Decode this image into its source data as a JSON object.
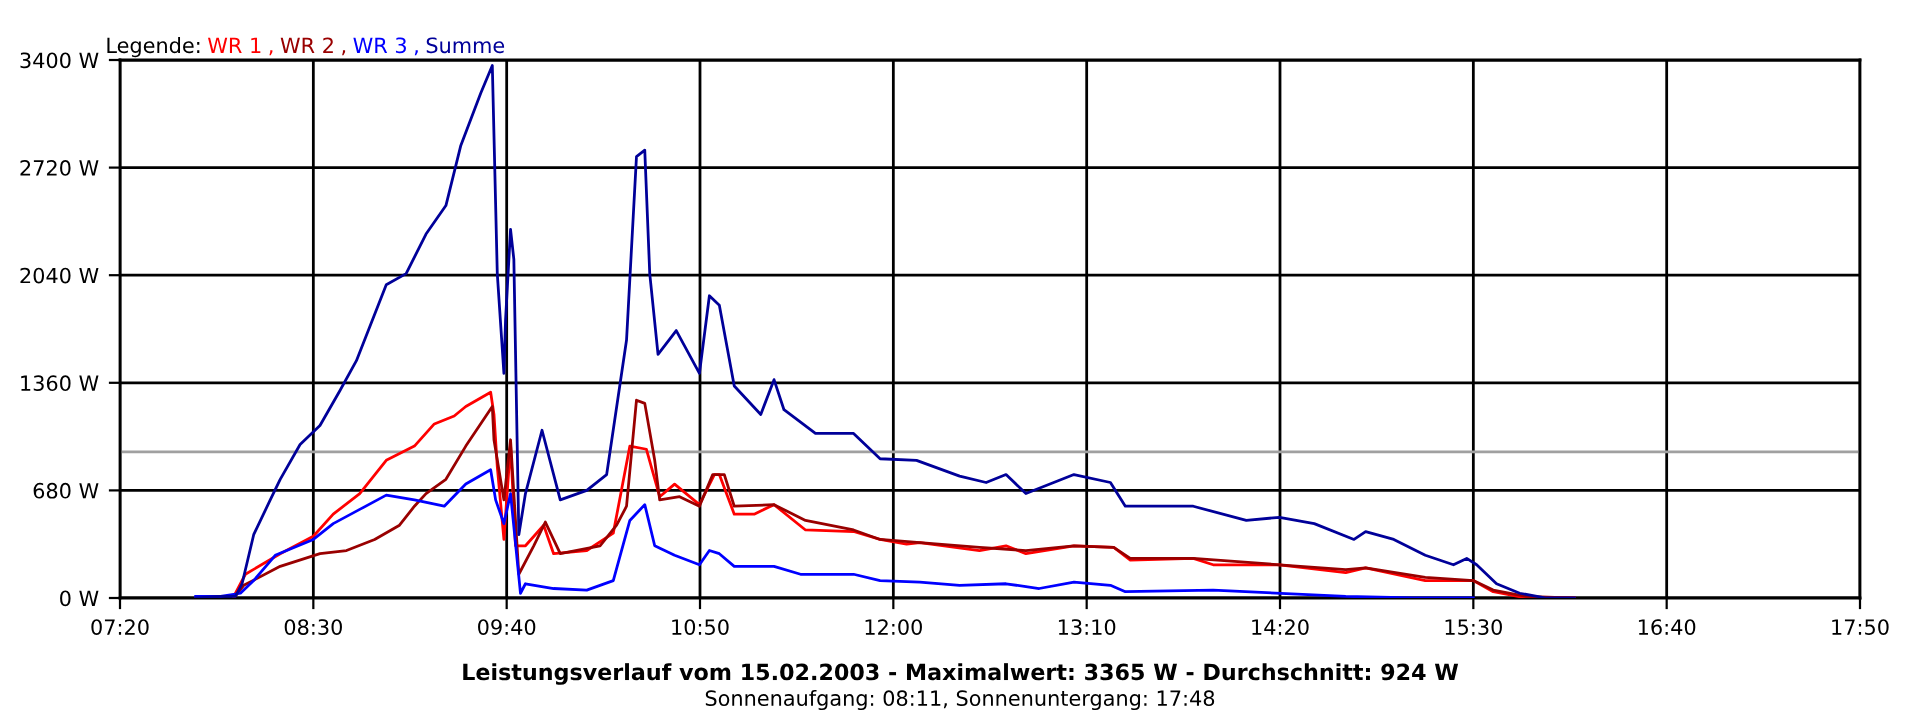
{
  "chart_data": {
    "type": "line",
    "title": "Leistungsverlauf vom 15.02.2003 - Maximalwert: 3365 W - Durchschnitt: 924 W",
    "subtitle": "Sonnenaufgang: 08:11, Sonnenuntergang: 17:48",
    "legend_title": "Legende:",
    "legend": "top left",
    "annotations": [
      ",",
      ",",
      ","
    ],
    "grid": true,
    "xlim": [
      7.3333,
      17.8333
    ],
    "xticks": [
      {
        "value": 7.3333,
        "label": "07:20"
      },
      {
        "value": 8.5,
        "label": "08:30"
      },
      {
        "value": 9.6667,
        "label": "09:40"
      },
      {
        "value": 10.8333,
        "label": "10:50"
      },
      {
        "value": 12,
        "label": "12:00"
      },
      {
        "value": 13.1667,
        "label": "13:10"
      },
      {
        "value": 14.3333,
        "label": "14:20"
      },
      {
        "value": 15.5,
        "label": "15:30"
      },
      {
        "value": 16.6667,
        "label": "16:40"
      },
      {
        "value": 17.8333,
        "label": "17:50"
      }
    ],
    "ylim": [
      0,
      3400
    ],
    "yticks": [
      {
        "value": 0,
        "label": "0 W"
      },
      {
        "value": 680,
        "label": "680 W"
      },
      {
        "value": 1360,
        "label": "1360 W"
      },
      {
        "value": 2040,
        "label": "2040 W"
      },
      {
        "value": 2720,
        "label": "2720 W"
      },
      {
        "value": 3400,
        "label": "3400 W"
      }
    ],
    "ref_lines": [
      {
        "axis": "y",
        "value": 924,
        "color": "#a0a0a0"
      }
    ],
    "series": [
      {
        "name": "WR 1",
        "color": "#ff0000",
        "x": [
          8.02,
          8.09,
          8.3,
          8.5,
          8.62,
          8.78,
          8.94,
          9.11,
          9.23,
          9.35,
          9.42,
          9.57,
          9.59,
          9.61,
          9.65,
          9.69,
          9.72,
          9.78,
          9.89,
          9.95,
          10.15,
          10.31,
          10.41,
          10.51,
          10.59,
          10.68,
          10.83,
          10.92,
          10.95,
          11.04,
          11.16,
          11.28,
          11.47,
          11.76,
          11.92,
          12.08,
          12.16,
          12.52,
          12.68,
          12.8,
          13.09,
          13.33,
          13.43,
          13.81,
          13.93,
          14.33,
          14.73,
          14.85,
          15.21,
          15.5,
          15.62,
          15.82,
          16.11
        ],
        "values": [
          10,
          150,
          280,
          390,
          530,
          660,
          870,
          960,
          1100,
          1150,
          1210,
          1300,
          1160,
          830,
          370,
          970,
          330,
          330,
          460,
          280,
          300,
          410,
          960,
          940,
          640,
          720,
          590,
          780,
          780,
          530,
          530,
          590,
          430,
          420,
          370,
          340,
          350,
          300,
          330,
          280,
          330,
          320,
          240,
          250,
          210,
          210,
          160,
          190,
          110,
          110,
          40,
          0,
          0
        ]
      },
      {
        "name": "WR 2",
        "color": "#990000",
        "x": [
          8.02,
          8.08,
          8.3,
          8.54,
          8.7,
          8.87,
          9.02,
          9.11,
          9.18,
          9.3,
          9.42,
          9.58,
          9.59,
          9.65,
          9.69,
          9.74,
          9.83,
          9.9,
          9.99,
          10.23,
          10.33,
          10.39,
          10.45,
          10.5,
          10.56,
          10.59,
          10.71,
          10.83,
          10.91,
          10.98,
          11.04,
          11.28,
          11.47,
          11.76,
          11.92,
          12.16,
          12.52,
          12.8,
          13.09,
          13.33,
          13.43,
          13.81,
          14.33,
          14.73,
          14.85,
          15.21,
          15.5,
          15.62,
          15.82,
          16.11
        ],
        "values": [
          0,
          80,
          200,
          280,
          300,
          370,
          460,
          580,
          660,
          750,
          960,
          1210,
          1000,
          620,
          1000,
          150,
          330,
          480,
          280,
          330,
          460,
          580,
          1250,
          1230,
          870,
          620,
          640,
          580,
          780,
          780,
          580,
          590,
          490,
          430,
          370,
          350,
          320,
          300,
          330,
          320,
          250,
          250,
          210,
          180,
          190,
          130,
          110,
          50,
          10,
          0
        ]
      },
      {
        "name": "WR 3",
        "color": "#0000ff",
        "x": [
          7.79,
          7.94,
          8.06,
          8.14,
          8.27,
          8.5,
          8.62,
          8.78,
          8.94,
          9.11,
          9.29,
          9.42,
          9.57,
          9.6,
          9.65,
          9.69,
          9.75,
          9.78,
          9.95,
          10.15,
          10.31,
          10.41,
          10.5,
          10.56,
          10.68,
          10.83,
          10.89,
          10.95,
          11.04,
          11.28,
          11.44,
          11.76,
          11.92,
          12.16,
          12.4,
          12.68,
          12.88,
          13.09,
          13.31,
          13.4,
          13.93,
          14.73,
          15.14,
          15.5
        ],
        "values": [
          10,
          10,
          30,
          110,
          270,
          370,
          470,
          560,
          650,
          620,
          580,
          720,
          810,
          620,
          470,
          660,
          30,
          90,
          60,
          50,
          110,
          490,
          590,
          330,
          270,
          210,
          300,
          280,
          200,
          200,
          150,
          150,
          110,
          100,
          80,
          90,
          60,
          100,
          80,
          40,
          50,
          10,
          0,
          0
        ]
      },
      {
        "name": "Summe",
        "color": "#000099",
        "x": [
          7.79,
          7.94,
          8.03,
          8.07,
          8.14,
          8.24,
          8.3,
          8.42,
          8.54,
          8.66,
          8.76,
          8.94,
          9.06,
          9.18,
          9.3,
          9.39,
          9.51,
          9.58,
          9.61,
          9.65,
          9.66,
          9.69,
          9.71,
          9.74,
          9.78,
          9.88,
          9.99,
          10.15,
          10.27,
          10.39,
          10.45,
          10.5,
          10.53,
          10.58,
          10.69,
          10.83,
          10.89,
          10.95,
          11.04,
          11.2,
          11.28,
          11.34,
          11.53,
          11.76,
          11.92,
          12.14,
          12.4,
          12.56,
          12.68,
          12.8,
          13.09,
          13.31,
          13.4,
          13.81,
          14.13,
          14.33,
          14.54,
          14.78,
          14.85,
          15.02,
          15.21,
          15.38,
          15.46,
          15.52,
          15.64,
          15.78,
          15.94,
          16.11
        ],
        "values": [
          0,
          10,
          10,
          90,
          400,
          620,
          750,
          970,
          1090,
          1310,
          1500,
          1980,
          2050,
          2300,
          2480,
          2860,
          3190,
          3365,
          2050,
          1420,
          1760,
          2330,
          2140,
          400,
          660,
          1060,
          620,
          680,
          780,
          1630,
          2790,
          2830,
          2050,
          1540,
          1690,
          1420,
          1910,
          1850,
          1340,
          1160,
          1380,
          1190,
          1040,
          1040,
          880,
          870,
          770,
          730,
          780,
          660,
          780,
          730,
          580,
          580,
          490,
          510,
          470,
          370,
          420,
          370,
          270,
          210,
          250,
          210,
          90,
          30,
          0,
          0
        ]
      }
    ]
  }
}
